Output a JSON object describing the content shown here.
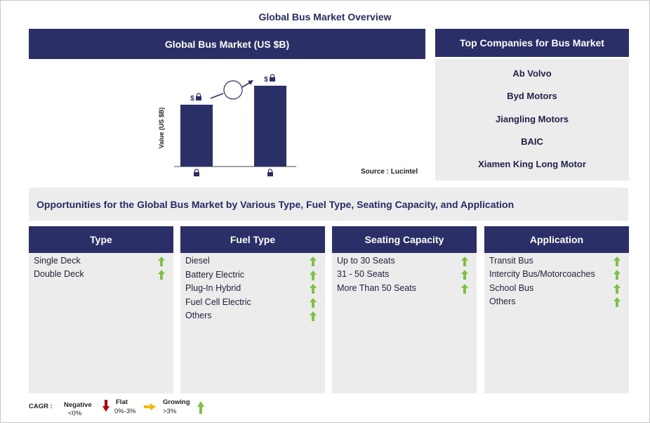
{
  "page_title": "Global Bus Market Overview",
  "market_panel": {
    "title": "Global Bus Market (US $B)"
  },
  "chart_data": {
    "type": "bar",
    "title": "Global Bus Market (US $B)",
    "ylabel": "Value (US $B)",
    "categories": [
      "",
      ""
    ],
    "values": [
      null,
      null
    ],
    "value_labels": [
      "$",
      "$"
    ],
    "note": "",
    "source": "Source : Lucintel",
    "bar_color": "#2a2f68"
  },
  "companies_panel": {
    "title": "Top Companies for Bus Market",
    "items": [
      "Ab Volvo",
      "Byd Motors",
      "Jiangling Motors",
      "BAIC",
      "Xiamen King Long Motor"
    ]
  },
  "opportunities": {
    "title": "Opportunities for the Global Bus Market by Various Type, Fuel Type, Seating Capacity, and Application"
  },
  "segments": [
    {
      "title": "Type",
      "items": [
        "Single Deck",
        "Double Deck"
      ]
    },
    {
      "title": "Fuel Type",
      "items": [
        "Diesel",
        "Battery Electric",
        "Plug-In Hybrid",
        "Fuel Cell Electric",
        "Others"
      ]
    },
    {
      "title": "Seating Capacity",
      "items": [
        "Up to 30 Seats",
        "31 - 50 Seats",
        "More Than 50 Seats"
      ]
    },
    {
      "title": "Application",
      "items": [
        "Transit Bus",
        "Intercity Bus/Motorcoaches",
        "School Bus",
        "Others"
      ]
    }
  ],
  "legend": {
    "cagr_label": "CAGR :",
    "negative": {
      "label": "Negative",
      "range": "<0%",
      "color": "#c00000"
    },
    "flat": {
      "label": "Flat",
      "range": "0%-3%",
      "color": "#f5b800"
    },
    "growing": {
      "label": "Growing",
      "range": ">3%",
      "color": "#7dc242"
    }
  },
  "colors": {
    "navy": "#2a2f68",
    "panel_gray": "#ececec",
    "growth_green": "#7dc242"
  }
}
